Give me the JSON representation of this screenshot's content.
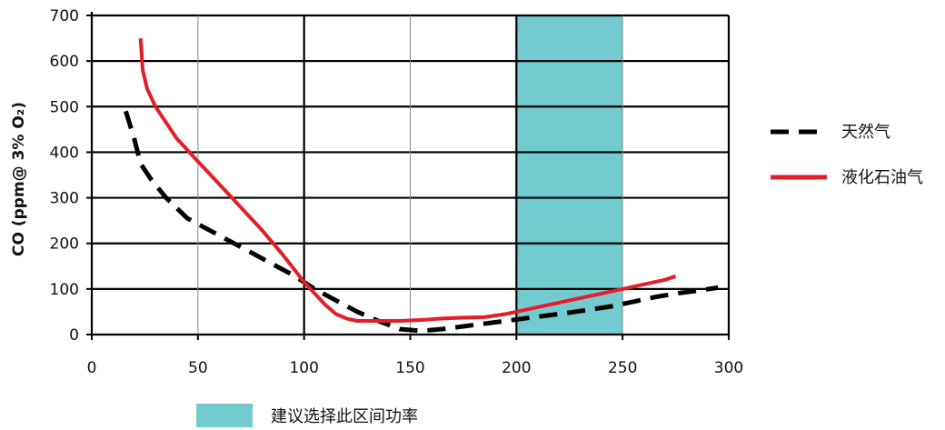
{
  "chart_data": {
    "type": "line",
    "title": "",
    "xlabel": "",
    "ylabel": "CO (ppm@ 3% O₂)",
    "xlim": [
      0,
      300
    ],
    "ylim": [
      0,
      700
    ],
    "xticks": [
      "0",
      "50",
      "100",
      "150",
      "200",
      "250",
      "300"
    ],
    "yticks": [
      "0",
      "100",
      "200",
      "300",
      "400",
      "500",
      "600",
      "700"
    ],
    "grid": true,
    "legend_position": "right",
    "highlight": {
      "x_range": [
        200,
        250
      ],
      "label": "建议选择此区间功率",
      "color": "#73cbd0"
    },
    "series": [
      {
        "name": "天然气",
        "style": "dashed",
        "color": "#000000",
        "points": [
          [
            16,
            490
          ],
          [
            20,
            430
          ],
          [
            23,
            375
          ],
          [
            28,
            340
          ],
          [
            35,
            300
          ],
          [
            45,
            255
          ],
          [
            55,
            230
          ],
          [
            65,
            205
          ],
          [
            75,
            180
          ],
          [
            85,
            155
          ],
          [
            95,
            130
          ],
          [
            105,
            100
          ],
          [
            115,
            75
          ],
          [
            125,
            50
          ],
          [
            135,
            30
          ],
          [
            145,
            12
          ],
          [
            155,
            8
          ],
          [
            165,
            12
          ],
          [
            175,
            18
          ],
          [
            185,
            24
          ],
          [
            195,
            30
          ],
          [
            205,
            36
          ],
          [
            215,
            42
          ],
          [
            225,
            48
          ],
          [
            235,
            55
          ],
          [
            245,
            62
          ],
          [
            255,
            72
          ],
          [
            265,
            82
          ],
          [
            275,
            90
          ],
          [
            285,
            96
          ],
          [
            295,
            103
          ]
        ]
      },
      {
        "name": "液化石油气",
        "style": "solid",
        "color": "#e41e26",
        "points": [
          [
            23,
            650
          ],
          [
            24,
            580
          ],
          [
            26,
            540
          ],
          [
            30,
            500
          ],
          [
            35,
            465
          ],
          [
            40,
            430
          ],
          [
            50,
            380
          ],
          [
            60,
            330
          ],
          [
            70,
            280
          ],
          [
            80,
            230
          ],
          [
            90,
            175
          ],
          [
            100,
            115
          ],
          [
            105,
            90
          ],
          [
            110,
            65
          ],
          [
            115,
            45
          ],
          [
            120,
            35
          ],
          [
            125,
            30
          ],
          [
            135,
            30
          ],
          [
            145,
            30
          ],
          [
            155,
            32
          ],
          [
            165,
            35
          ],
          [
            175,
            37
          ],
          [
            185,
            38
          ],
          [
            195,
            45
          ],
          [
            200,
            50
          ],
          [
            210,
            60
          ],
          [
            220,
            70
          ],
          [
            230,
            80
          ],
          [
            240,
            90
          ],
          [
            250,
            100
          ],
          [
            260,
            110
          ],
          [
            270,
            120
          ],
          [
            275,
            128
          ]
        ]
      }
    ]
  }
}
